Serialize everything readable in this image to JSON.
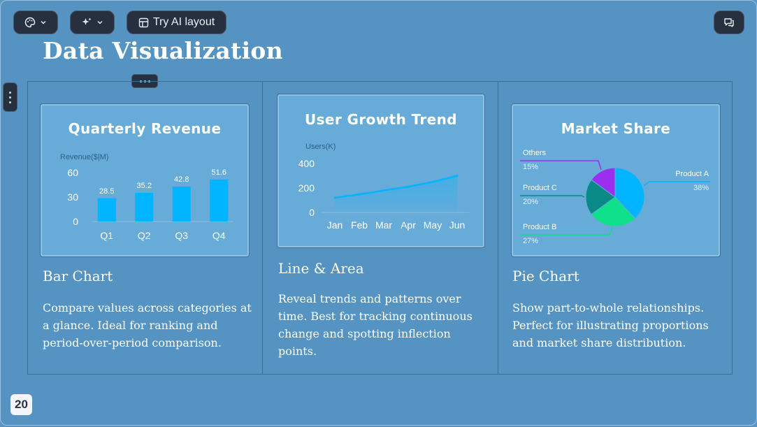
{
  "toolbar": {
    "theme_icon": "palette-icon",
    "ai_icon": "sparkle-icon",
    "layout_icon": "layout-icon",
    "try_ai_label": "Try AI layout",
    "comment_icon": "comment-icon"
  },
  "slide": {
    "title": "Data Visualization",
    "page_number": "20"
  },
  "columns": [
    {
      "heading": "Bar Chart",
      "description": "Compare values across categories at a glance. Ideal for ranking and period-over-period comparison."
    },
    {
      "heading": "Line & Area",
      "description": "Reveal trends and patterns over time. Best for tracking continuous change and spotting inflection points."
    },
    {
      "heading": "Pie Chart",
      "description": "Show part-to-whole relationships. Perfect for illustrating proportions and market share distribution."
    }
  ],
  "chart_data": [
    {
      "type": "bar",
      "title": "Quarterly Revenue",
      "ylabel": "Revenue($|M)",
      "categories": [
        "Q1",
        "Q2",
        "Q3",
        "Q4"
      ],
      "values": [
        28.5,
        35.2,
        42.8,
        51.6
      ],
      "yticks": [
        0,
        30,
        60
      ],
      "ylim": [
        0,
        60
      ],
      "color": "#00b4ff"
    },
    {
      "type": "area",
      "title": "User Growth Trend",
      "ylabel": "Users(K)",
      "categories": [
        "Jan",
        "Feb",
        "Mar",
        "Apr",
        "May",
        "Jun"
      ],
      "values": [
        120,
        148,
        180,
        210,
        250,
        300
      ],
      "yticks": [
        0,
        200,
        400
      ],
      "ylim": [
        0,
        400
      ],
      "color": "#00b4ff"
    },
    {
      "type": "pie",
      "title": "Market Share",
      "slices": [
        {
          "label": "Product A",
          "pct": "38%",
          "value": 38,
          "color": "#00b4ff"
        },
        {
          "label": "Product B",
          "pct": "27%",
          "value": 27,
          "color": "#0fe08a"
        },
        {
          "label": "Product C",
          "pct": "20%",
          "value": 20,
          "color": "#0a8a86"
        },
        {
          "label": "Others",
          "pct": "15%",
          "value": 15,
          "color": "#9a2ff0"
        }
      ]
    }
  ]
}
